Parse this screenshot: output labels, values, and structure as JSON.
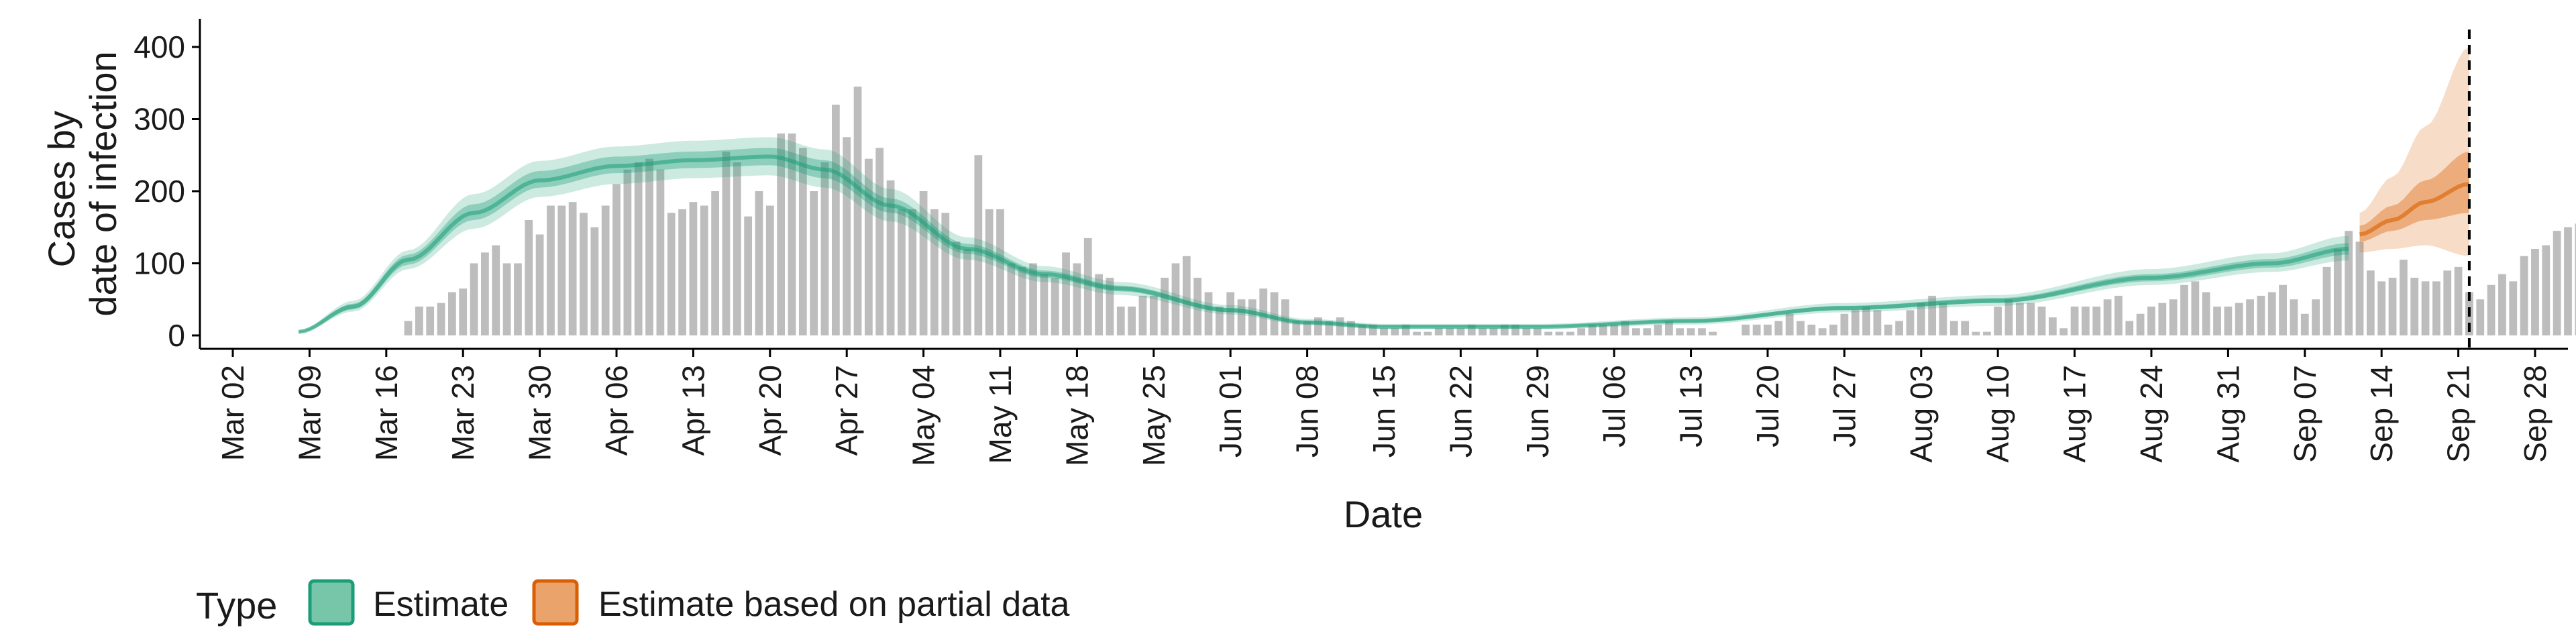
{
  "chart_data": {
    "type": "bar+area",
    "xlabel": "Date",
    "ylabel": [
      "Cases by",
      "date of infection"
    ],
    "ylim": [
      0,
      430
    ],
    "yticks": [
      0,
      100,
      200,
      300,
      400
    ],
    "x_axis": {
      "type": "date",
      "xlim": [
        "2020-02-28",
        "2020-10-01"
      ],
      "ticks": [
        {
          "date": "2020-03-02",
          "label": "Mar 02"
        },
        {
          "date": "2020-03-09",
          "label": "Mar 09"
        },
        {
          "date": "2020-03-16",
          "label": "Mar 16"
        },
        {
          "date": "2020-03-23",
          "label": "Mar 23"
        },
        {
          "date": "2020-03-30",
          "label": "Mar 30"
        },
        {
          "date": "2020-04-06",
          "label": "Apr 06"
        },
        {
          "date": "2020-04-13",
          "label": "Apr 13"
        },
        {
          "date": "2020-04-20",
          "label": "Apr 20"
        },
        {
          "date": "2020-04-27",
          "label": "Apr 27"
        },
        {
          "date": "2020-05-04",
          "label": "May 04"
        },
        {
          "date": "2020-05-11",
          "label": "May 11"
        },
        {
          "date": "2020-05-18",
          "label": "May 18"
        },
        {
          "date": "2020-05-25",
          "label": "May 25"
        },
        {
          "date": "2020-06-01",
          "label": "Jun 01"
        },
        {
          "date": "2020-06-08",
          "label": "Jun 08"
        },
        {
          "date": "2020-06-15",
          "label": "Jun 15"
        },
        {
          "date": "2020-06-22",
          "label": "Jun 22"
        },
        {
          "date": "2020-06-29",
          "label": "Jun 29"
        },
        {
          "date": "2020-07-06",
          "label": "Jul 06"
        },
        {
          "date": "2020-07-13",
          "label": "Jul 13"
        },
        {
          "date": "2020-07-20",
          "label": "Jul 20"
        },
        {
          "date": "2020-07-27",
          "label": "Jul 27"
        },
        {
          "date": "2020-08-03",
          "label": "Aug 03"
        },
        {
          "date": "2020-08-10",
          "label": "Aug 10"
        },
        {
          "date": "2020-08-17",
          "label": "Aug 17"
        },
        {
          "date": "2020-08-24",
          "label": "Aug 24"
        },
        {
          "date": "2020-08-31",
          "label": "Aug 31"
        },
        {
          "date": "2020-09-07",
          "label": "Sep 07"
        },
        {
          "date": "2020-09-14",
          "label": "Sep 14"
        },
        {
          "date": "2020-09-21",
          "label": "Sep 21"
        },
        {
          "date": "2020-09-28",
          "label": "Sep 28"
        }
      ]
    },
    "vline_date": "2020-09-22",
    "legend": {
      "title": "Type",
      "position": "bottom-left",
      "items": [
        {
          "label": "Estimate",
          "fill": "#77c6a9",
          "stroke": "#1b9e77"
        },
        {
          "label": "Estimate based on partial data",
          "fill": "#eba36c",
          "stroke": "#d95f02"
        }
      ]
    },
    "colors": {
      "bars": "#bdbdbd",
      "estimate": "#1b9e77",
      "partial": "#d95f02",
      "axis": "#000000"
    },
    "bars": {
      "start_date": "2020-03-18",
      "values": [
        20,
        40,
        40,
        45,
        60,
        65,
        100,
        115,
        125,
        100,
        100,
        160,
        140,
        180,
        180,
        185,
        170,
        150,
        180,
        210,
        230,
        240,
        245,
        230,
        170,
        175,
        185,
        180,
        200,
        255,
        240,
        165,
        200,
        180,
        280,
        280,
        260,
        200,
        240,
        320,
        275,
        345,
        245,
        260,
        215,
        175,
        175,
        200,
        175,
        170,
        130,
        120,
        250,
        175,
        175,
        100,
        95,
        100,
        85,
        80,
        115,
        100,
        135,
        85,
        80,
        40,
        40,
        55,
        55,
        80,
        100,
        110,
        80,
        60,
        40,
        60,
        50,
        50,
        65,
        60,
        50,
        20,
        20,
        25,
        20,
        25,
        20,
        15,
        15,
        10,
        10,
        15,
        5,
        5,
        10,
        10,
        10,
        15,
        10,
        10,
        15,
        15,
        10,
        10,
        5,
        5,
        5,
        10,
        15,
        15,
        15,
        20,
        10,
        10,
        15,
        20,
        10,
        10,
        10,
        5,
        0,
        0,
        15,
        15,
        15,
        20,
        30,
        20,
        15,
        10,
        15,
        30,
        35,
        40,
        35,
        15,
        20,
        35,
        45,
        55,
        45,
        20,
        20,
        5,
        5,
        40,
        50,
        45,
        45,
        40,
        25,
        10,
        40,
        40,
        40,
        50,
        55,
        20,
        30,
        40,
        45,
        50,
        70,
        75,
        60,
        40,
        40,
        45,
        50,
        55,
        60,
        70,
        50,
        30,
        50,
        95,
        120,
        145,
        130,
        90,
        75,
        80,
        105,
        80,
        75,
        75,
        90,
        95,
        60,
        50,
        70,
        85,
        75,
        110,
        120,
        125,
        145,
        150,
        155
      ]
    },
    "estimate": {
      "start_date": "2020-03-08",
      "end_date": "2020-09-11",
      "knots": [
        {
          "date": "2020-03-08",
          "median": 5,
          "lo50": 4,
          "hi50": 6,
          "lo90": 3,
          "hi90": 7
        },
        {
          "date": "2020-03-13",
          "median": 40,
          "lo50": 36,
          "hi50": 44,
          "lo90": 33,
          "hi90": 48
        },
        {
          "date": "2020-03-18",
          "median": 105,
          "lo50": 98,
          "hi50": 112,
          "lo90": 92,
          "hi90": 118
        },
        {
          "date": "2020-03-24",
          "median": 170,
          "lo50": 160,
          "hi50": 182,
          "lo90": 148,
          "hi90": 196
        },
        {
          "date": "2020-03-30",
          "median": 215,
          "lo50": 205,
          "hi50": 228,
          "lo90": 192,
          "hi90": 242
        },
        {
          "date": "2020-04-06",
          "median": 235,
          "lo50": 225,
          "hi50": 248,
          "lo90": 210,
          "hi90": 262
        },
        {
          "date": "2020-04-13",
          "median": 243,
          "lo50": 232,
          "hi50": 255,
          "lo90": 218,
          "hi90": 270
        },
        {
          "date": "2020-04-20",
          "median": 248,
          "lo50": 236,
          "hi50": 260,
          "lo90": 222,
          "hi90": 275
        },
        {
          "date": "2020-04-25",
          "median": 230,
          "lo50": 218,
          "hi50": 243,
          "lo90": 205,
          "hi90": 258
        },
        {
          "date": "2020-05-01",
          "median": 180,
          "lo50": 170,
          "hi50": 190,
          "lo90": 158,
          "hi90": 203
        },
        {
          "date": "2020-05-08",
          "median": 120,
          "lo50": 113,
          "hi50": 127,
          "lo90": 105,
          "hi90": 136
        },
        {
          "date": "2020-05-15",
          "median": 85,
          "lo50": 80,
          "hi50": 90,
          "lo90": 74,
          "hi90": 96
        },
        {
          "date": "2020-05-22",
          "median": 65,
          "lo50": 61,
          "hi50": 69,
          "lo90": 56,
          "hi90": 74
        },
        {
          "date": "2020-06-01",
          "median": 35,
          "lo50": 32,
          "hi50": 38,
          "lo90": 29,
          "hi90": 42
        },
        {
          "date": "2020-06-08",
          "median": 18,
          "lo50": 16,
          "hi50": 20,
          "lo90": 14,
          "hi90": 23
        },
        {
          "date": "2020-06-15",
          "median": 12,
          "lo50": 11,
          "hi50": 14,
          "lo90": 9,
          "hi90": 16
        },
        {
          "date": "2020-06-29",
          "median": 12,
          "lo50": 11,
          "hi50": 14,
          "lo90": 9,
          "hi90": 16
        },
        {
          "date": "2020-07-13",
          "median": 20,
          "lo50": 18,
          "hi50": 22,
          "lo90": 15,
          "hi90": 25
        },
        {
          "date": "2020-07-27",
          "median": 38,
          "lo50": 35,
          "hi50": 41,
          "lo90": 32,
          "hi90": 45
        },
        {
          "date": "2020-08-10",
          "median": 48,
          "lo50": 45,
          "hi50": 52,
          "lo90": 41,
          "hi90": 56
        },
        {
          "date": "2020-08-24",
          "median": 80,
          "lo50": 75,
          "hi50": 85,
          "lo90": 70,
          "hi90": 92
        },
        {
          "date": "2020-09-04",
          "median": 100,
          "lo50": 94,
          "hi50": 106,
          "lo90": 88,
          "hi90": 114
        },
        {
          "date": "2020-09-11",
          "median": 120,
          "lo50": 112,
          "hi50": 128,
          "lo90": 104,
          "hi90": 138
        }
      ]
    },
    "partial_estimate": {
      "start_date": "2020-09-12",
      "end_date": "2020-09-22",
      "knots": [
        {
          "date": "2020-09-12",
          "median": 140,
          "lo50": 130,
          "hi50": 152,
          "lo90": 115,
          "hi90": 170
        },
        {
          "date": "2020-09-15",
          "median": 160,
          "lo50": 145,
          "hi50": 180,
          "lo90": 120,
          "hi90": 220
        },
        {
          "date": "2020-09-18",
          "median": 185,
          "lo50": 160,
          "hi50": 215,
          "lo90": 125,
          "hi90": 290
        },
        {
          "date": "2020-09-22",
          "median": 210,
          "lo50": 170,
          "hi50": 255,
          "lo90": 110,
          "hi90": 400
        }
      ]
    }
  }
}
